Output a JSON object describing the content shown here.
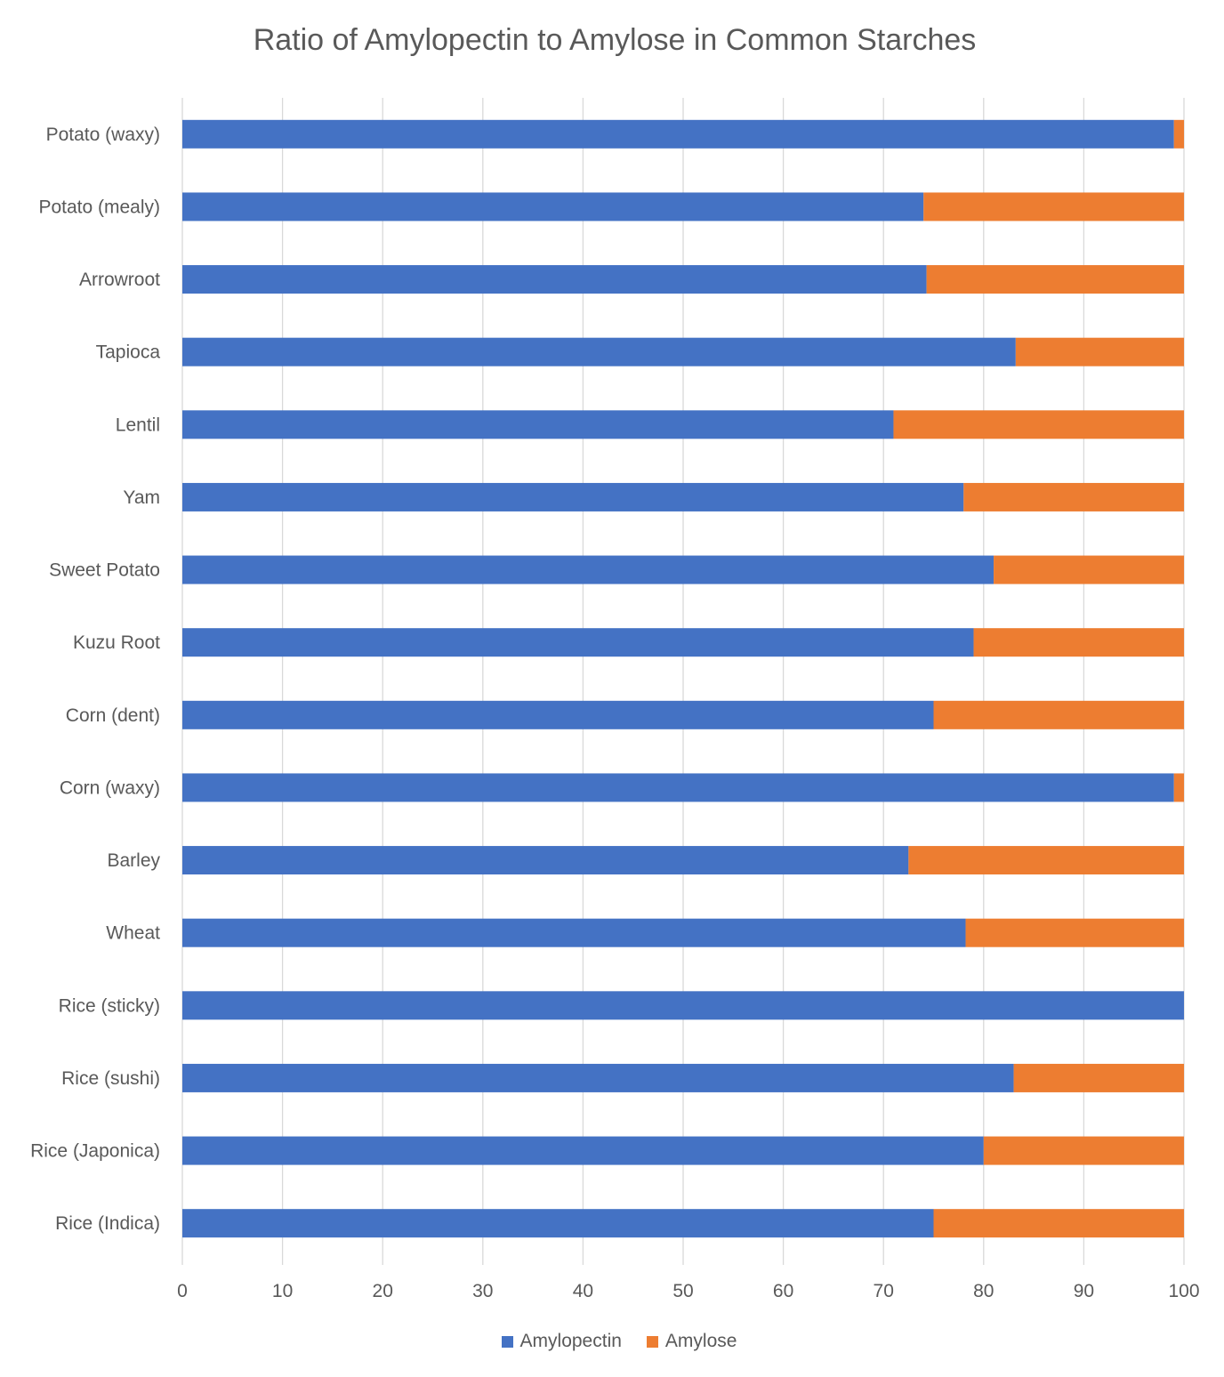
{
  "chart_data": {
    "type": "bar",
    "orientation": "horizontal",
    "stacked": true,
    "title": "Ratio of Amylopectin to Amylose in Common Starches",
    "xlabel": "",
    "ylabel": "",
    "xlim": [
      0,
      100
    ],
    "xticks": [
      0,
      10,
      20,
      30,
      40,
      50,
      60,
      70,
      80,
      90,
      100
    ],
    "grid": true,
    "legend": "bottom",
    "categories": [
      "Potato (waxy)",
      "Potato (mealy)",
      "Arrowroot",
      "Tapioca",
      "Lentil",
      "Yam",
      "Sweet Potato",
      "Kuzu Root",
      "Corn (dent)",
      "Corn (waxy)",
      "Barley",
      "Wheat",
      "Rice (sticky)",
      "Rice (sushi)",
      "Rice (Japonica)",
      "Rice (Indica)"
    ],
    "series": [
      {
        "name": "Amylopectin",
        "color": "#4472c4",
        "values": [
          99,
          74,
          74.3,
          83.2,
          71,
          78,
          81,
          79,
          75,
          99,
          72.5,
          78.2,
          100,
          83,
          80,
          75
        ]
      },
      {
        "name": "Amylose",
        "color": "#ed7d31",
        "values": [
          1,
          26,
          25.7,
          16.8,
          29,
          22,
          19,
          21,
          25,
          1,
          27.5,
          21.8,
          0,
          17,
          20,
          25
        ]
      }
    ]
  }
}
